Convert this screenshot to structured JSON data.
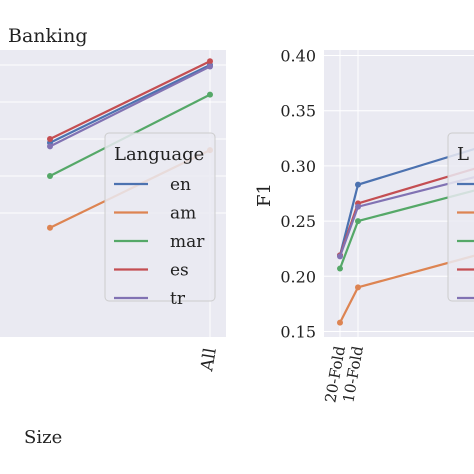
{
  "figure": {
    "panel_title": "Banking",
    "shared_xlabel": "Size"
  },
  "legend": {
    "title": "Language",
    "title_clipped": "L",
    "entries": [
      {
        "label": "en",
        "color": "#4c72b0"
      },
      {
        "label": "am",
        "color": "#dd8452"
      },
      {
        "label": "mar",
        "color": "#55a868"
      },
      {
        "label": "es",
        "color": "#c44e52"
      },
      {
        "label": "tr",
        "color": "#8172b3"
      }
    ]
  },
  "chart_data": [
    {
      "type": "line",
      "title": "Banking",
      "xlabel": "",
      "ylabel": "",
      "categories": [
        "All"
      ],
      "grid": true,
      "legend_placement": "center-right",
      "series": [
        {
          "name": "en",
          "color": "#4c72b0",
          "points": [
            [
              -1.6,
              0.245
            ],
            [
              0,
              0.35
            ]
          ]
        },
        {
          "name": "am",
          "color": "#dd8452",
          "points": [
            [
              -1.6,
              0.13
            ],
            [
              0,
              0.235
            ]
          ]
        },
        {
          "name": "mar",
          "color": "#55a868",
          "points": [
            [
              -1.6,
              0.2
            ],
            [
              0,
              0.31
            ]
          ]
        },
        {
          "name": "es",
          "color": "#c44e52",
          "points": [
            [
              -1.6,
              0.25
            ],
            [
              0,
              0.355
            ]
          ]
        },
        {
          "name": "tr",
          "color": "#8172b3",
          "points": [
            [
              -1.6,
              0.24
            ],
            [
              0,
              0.348
            ]
          ]
        }
      ]
    },
    {
      "type": "line",
      "title": "",
      "xlabel": "",
      "ylabel": "F1",
      "categories": [
        "20-Fold",
        "10-Fold"
      ],
      "ylim": [
        0.145,
        0.405
      ],
      "yticks": [
        "0.15",
        "0.20",
        "0.25",
        "0.30",
        "0.35",
        "0.40"
      ],
      "grid": true,
      "legend_placement": "center-right",
      "series": [
        {
          "name": "en",
          "color": "#4c72b0",
          "values": [
            0.219,
            0.283
          ],
          "continues_to": 0.318
        },
        {
          "name": "am",
          "color": "#dd8452",
          "values": [
            0.158,
            0.19
          ],
          "continues_to": 0.221
        },
        {
          "name": "mar",
          "color": "#55a868",
          "values": [
            0.207,
            0.25
          ],
          "continues_to": 0.28
        },
        {
          "name": "es",
          "color": "#c44e52",
          "values": [
            0.219,
            0.266
          ],
          "continues_to": 0.3
        },
        {
          "name": "tr",
          "color": "#8172b3",
          "values": [
            0.218,
            0.263
          ],
          "continues_to": 0.292
        }
      ]
    }
  ]
}
